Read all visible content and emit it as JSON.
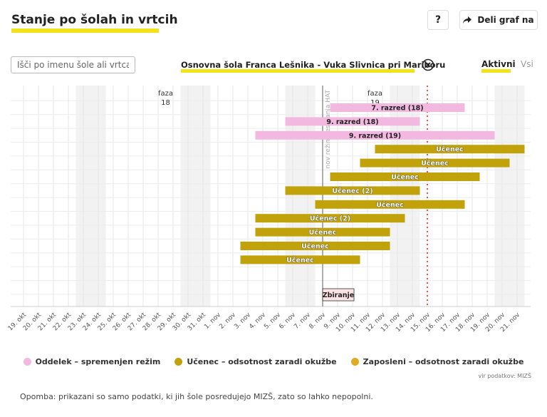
{
  "header": {
    "title": "Stanje po šolah in vrtcih",
    "help_label": "?",
    "share_label": "Deli graf na"
  },
  "search": {
    "placeholder": "Išči po imenu šole ali vrtca"
  },
  "selection": {
    "school": "Osnovna šola Franca Lešnika - Vuka Slivnica pri Mariboru"
  },
  "filters": {
    "active_label": "Aktivni",
    "all_label": "Vsi"
  },
  "chart_data": {
    "type": "gantt",
    "x_ticks": [
      "19. okt",
      "20. okt",
      "21. okt",
      "22. okt",
      "23. okt",
      "24. okt",
      "25. okt",
      "26. okt",
      "27. okt",
      "28. okt",
      "29. okt",
      "30. okt",
      "31. okt",
      "1. nov",
      "2. nov",
      "3. nov",
      "4. nov",
      "5. nov",
      "6. nov",
      "7. nov",
      "8. nov",
      "9. nov",
      "10. nov",
      "11. nov",
      "12. nov",
      "13. nov",
      "14. nov",
      "15. nov",
      "16. nov",
      "17. nov",
      "18. nov",
      "19. nov",
      "20. nov",
      "21. nov"
    ],
    "weekend_indices": [
      4,
      5,
      11,
      12,
      18,
      19,
      25,
      26,
      32,
      33
    ],
    "phase_labels": [
      {
        "text": "faza",
        "number": "18",
        "x": 9.5
      },
      {
        "text": "faza",
        "number": "19",
        "x": 23.5
      }
    ],
    "vertical_line": {
      "x": 20,
      "label": "nov režim testiranja HAT"
    },
    "today_line": {
      "x": 27
    },
    "bars": [
      {
        "label": "7. razred (18)",
        "category": "Oddelek – spremenjen režim",
        "start": 20.5,
        "end": 29.5
      },
      {
        "label": "9. razred (18)",
        "category": "Oddelek – spremenjen režim",
        "start": 17.5,
        "end": 26.5
      },
      {
        "label": "9. razred (19)",
        "category": "Oddelek – spremenjen režim",
        "start": 15.5,
        "end": 31.5
      },
      {
        "label": "Učenec",
        "category": "Učenec – odsotnost zaradi okužbe",
        "start": 23.5,
        "end": 33.5
      },
      {
        "label": "Učenec",
        "category": "Učenec – odsotnost zaradi okužbe",
        "start": 22.5,
        "end": 32.5
      },
      {
        "label": "Učenec",
        "category": "Učenec – odsotnost zaradi okužbe",
        "start": 20.5,
        "end": 30.5
      },
      {
        "label": "Učenec (2)",
        "category": "Učenec – odsotnost zaradi okužbe",
        "start": 17.5,
        "end": 26.5
      },
      {
        "label": "Učenec",
        "category": "Učenec – odsotnost zaradi okužbe",
        "start": 19.5,
        "end": 29.5
      },
      {
        "label": "Učenec (2)",
        "category": "Učenec – odsotnost zaradi okužbe",
        "start": 15.5,
        "end": 25.5
      },
      {
        "label": "Učenec",
        "category": "Učenec – odsotnost zaradi okužbe",
        "start": 15.5,
        "end": 24.5
      },
      {
        "label": "Učenec",
        "category": "Učenec – odsotnost zaradi okužbe",
        "start": 14.5,
        "end": 24.5
      },
      {
        "label": "Učenec",
        "category": "Učenec – odsotnost zaradi okužbe",
        "start": 14.5,
        "end": 22.5
      }
    ],
    "annotation": {
      "label": "Zbiranje",
      "x": 20
    },
    "legend": [
      {
        "label": "Oddelek – spremenjen režim",
        "color": "#f2b8e0"
      },
      {
        "label": "Učenec – odsotnost zaradi okužbe",
        "color": "#c2a20a"
      },
      {
        "label": "Zaposleni – odsotnost zaradi okužbe",
        "color": "#e0aa22"
      }
    ],
    "colors": {
      "Oddelek – spremenjen režim": "#f2b8e0",
      "Učenec – odsotnost zaradi okužbe": "#c2a20a",
      "Zaposleni – odsotnost zaradi okužbe": "#e0aa22"
    }
  },
  "footer": {
    "source": "vir podatkov: MIZŠ",
    "note": "Opomba: prikazani so samo podatki, ki jih šole posredujejo MIZŠ, zato so lahko nepopolni."
  }
}
